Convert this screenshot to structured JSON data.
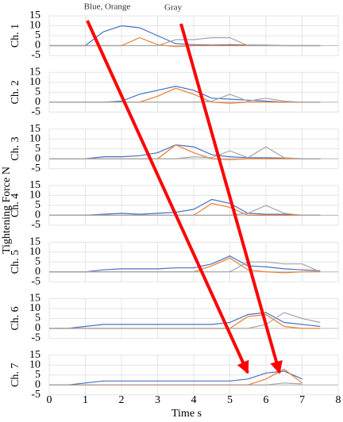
{
  "chart_data": {
    "type": "line",
    "annotations": [
      "Blue, Orange",
      "Gray"
    ],
    "xlabel": "Time s",
    "ylabel": "Tightening Force N",
    "x": [
      0,
      0.5,
      1,
      1.5,
      2,
      2.5,
      3,
      3.5,
      4,
      4.5,
      5,
      5.5,
      6,
      6.5,
      7,
      7.5,
      8
    ],
    "xlim": [
      0,
      8
    ],
    "xticks": [
      0,
      1,
      2,
      3,
      4,
      5,
      6,
      7,
      8
    ],
    "ylim": [
      -5,
      15
    ],
    "yticks": [
      -5,
      0,
      5,
      10,
      15
    ],
    "grid": true,
    "panels": [
      {
        "label": "Ch. 1",
        "series": [
          {
            "color": "#4472c4",
            "values": [
              0,
              0,
              0,
              7,
              10,
              9,
              5,
              1,
              0.5,
              0.3,
              0.5,
              0.3,
              0.2,
              0,
              0,
              0,
              null
            ]
          },
          {
            "color": "#ed7d31",
            "values": [
              0,
              0,
              0,
              0,
              0,
              4,
              0.5,
              -0.5,
              0,
              0,
              0,
              0,
              0,
              0,
              0,
              0,
              null
            ]
          },
          {
            "color": "#a5a5a5",
            "values": [
              0,
              0,
              0,
              0,
              0,
              0,
              0,
              3,
              3,
              4,
              4,
              0,
              0,
              0,
              0,
              0,
              null
            ]
          }
        ]
      },
      {
        "label": "Ch. 2",
        "series": [
          {
            "color": "#4472c4",
            "values": [
              0,
              0,
              0,
              0,
              0.5,
              4,
              6,
              8,
              6,
              2,
              1.5,
              1,
              0.5,
              0,
              0,
              0,
              null
            ]
          },
          {
            "color": "#ed7d31",
            "values": [
              0,
              0,
              0,
              0,
              0,
              0,
              3,
              7,
              4,
              0,
              -0.5,
              0,
              0,
              0,
              0,
              0,
              null
            ]
          },
          {
            "color": "#a5a5a5",
            "values": [
              0,
              0,
              0,
              0,
              0,
              0,
              0,
              0,
              0,
              0.5,
              4,
              0.5,
              2,
              0.5,
              0,
              0,
              null
            ]
          }
        ]
      },
      {
        "label": "Ch. 3",
        "series": [
          {
            "color": "#4472c4",
            "values": [
              0,
              0,
              0,
              1,
              1,
              1.5,
              3,
              7,
              6,
              2,
              1,
              0.5,
              0.5,
              0.3,
              0,
              0,
              null
            ]
          },
          {
            "color": "#ed7d31",
            "values": [
              0,
              0,
              0,
              0,
              0,
              0,
              0,
              7,
              3,
              0,
              -0.5,
              0,
              0,
              0,
              0,
              0,
              null
            ]
          },
          {
            "color": "#a5a5a5",
            "values": [
              0,
              0,
              0,
              0,
              0,
              0,
              0,
              0,
              1,
              0.5,
              4,
              0.5,
              6,
              0.5,
              0,
              0,
              null
            ]
          }
        ]
      },
      {
        "label": "Ch. 4",
        "series": [
          {
            "color": "#4472c4",
            "values": [
              0,
              0,
              0,
              0.5,
              1,
              0.5,
              1,
              1.5,
              3,
              8,
              6,
              1,
              0.5,
              0.5,
              0,
              0,
              null
            ]
          },
          {
            "color": "#ed7d31",
            "values": [
              0,
              0,
              0,
              0,
              0,
              0,
              0,
              0,
              0,
              6,
              4,
              0,
              0,
              0,
              0,
              0,
              null
            ]
          },
          {
            "color": "#a5a5a5",
            "values": [
              0,
              0,
              0,
              0,
              0,
              0,
              0,
              0,
              0,
              0,
              0,
              1,
              5,
              1,
              0,
              0,
              null
            ]
          }
        ]
      },
      {
        "label": "Ch. 5",
        "series": [
          {
            "color": "#4472c4",
            "values": [
              0,
              0,
              0,
              1,
              1.5,
              1.5,
              1.5,
              2,
              2,
              4,
              8,
              3,
              2.5,
              1.5,
              1,
              0.5,
              null
            ]
          },
          {
            "color": "#ed7d31",
            "values": [
              0,
              0,
              0,
              0,
              0,
              0,
              0,
              0,
              0,
              3,
              7,
              1,
              0,
              -0.5,
              0,
              0,
              null
            ]
          },
          {
            "color": "#a5a5a5",
            "values": [
              0,
              0,
              0,
              0,
              0,
              0,
              0,
              0,
              0,
              0,
              0,
              5,
              5,
              4,
              4,
              0,
              null
            ]
          }
        ]
      },
      {
        "label": "Ch. 6",
        "series": [
          {
            "color": "#4472c4",
            "values": [
              0,
              0,
              1,
              2,
              2,
              2,
              2,
              2,
              2,
              2,
              3,
              7,
              8,
              3,
              2,
              1,
              null
            ]
          },
          {
            "color": "#ed7d31",
            "values": [
              0,
              0,
              0,
              0,
              0,
              0,
              0,
              0,
              0,
              0,
              0,
              6,
              7,
              1,
              0,
              0,
              null
            ]
          },
          {
            "color": "#a5a5a5",
            "values": [
              0,
              0,
              0,
              0,
              0,
              0,
              0,
              0,
              0,
              0,
              0,
              0,
              2,
              8,
              5,
              3,
              null
            ]
          }
        ]
      },
      {
        "label": "Ch. 7",
        "series": [
          {
            "color": "#4472c4",
            "values": [
              0,
              0,
              1,
              2,
              2,
              2,
              2,
              2,
              2,
              2,
              2,
              3,
              6,
              7,
              3,
              null,
              null
            ]
          },
          {
            "color": "#ed7d31",
            "values": [
              0,
              0,
              0,
              0,
              0,
              0,
              0,
              0,
              0,
              0,
              0,
              0,
              3,
              8,
              1,
              null,
              null
            ]
          },
          {
            "color": "#a5a5a5",
            "values": [
              0,
              0,
              0,
              0,
              0,
              0,
              0,
              0,
              0,
              0,
              0,
              0,
              0,
              1,
              0.5,
              null,
              null
            ]
          }
        ]
      }
    ]
  }
}
